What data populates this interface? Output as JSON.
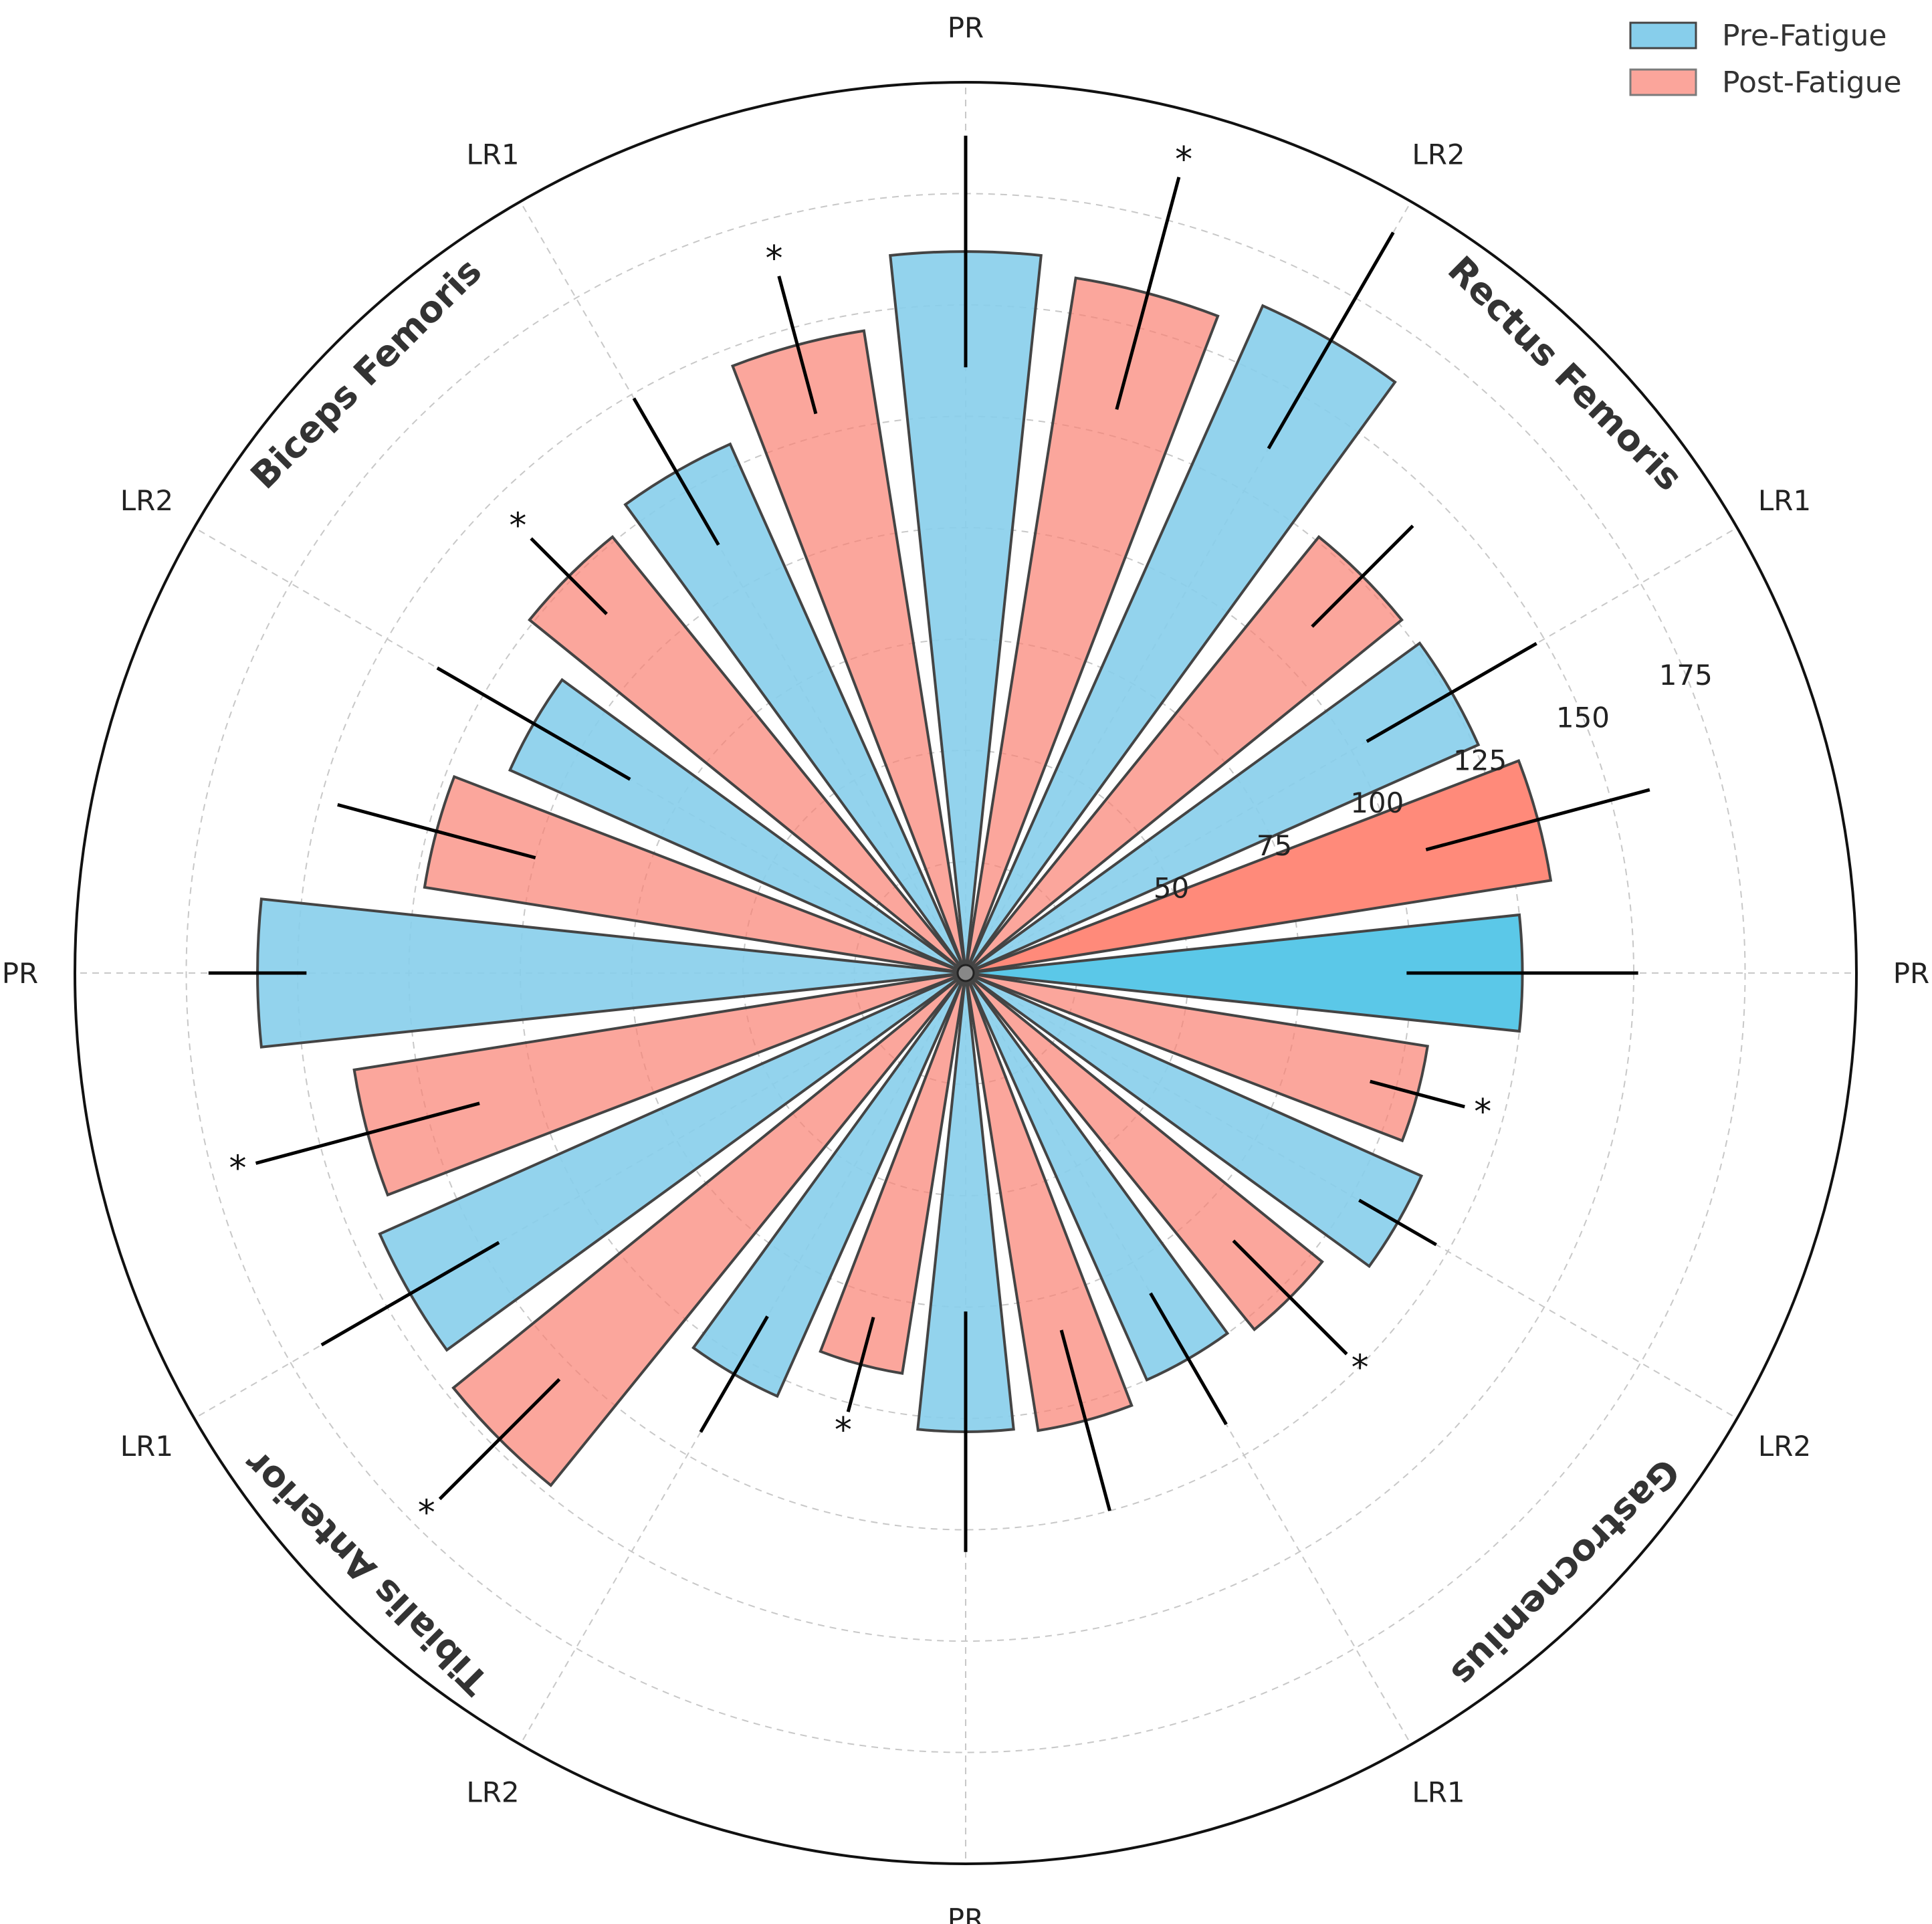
{
  "chart_data": {
    "type": "bar",
    "subtype": "polar-bar",
    "legend": {
      "placement": "top-right",
      "entries": [
        {
          "name": "Pre-Fatigue",
          "color": "#87CEEB"
        },
        {
          "name": "Post-Fatigue",
          "color": "#FA8072"
        }
      ]
    },
    "radial_ticks": [
      "50",
      "75",
      "100",
      "125",
      "150",
      "175"
    ],
    "radial_tick_values": [
      50,
      75,
      100,
      125,
      150,
      175
    ],
    "rlim": [
      0,
      200
    ],
    "grid": true,
    "colors": {
      "pre": "#87CEEB",
      "post": "#FA8072",
      "pre_highlight": "#5BC8E8",
      "post_highlight": "#FF8A7A"
    },
    "categories": [
      {
        "muscle": "Rectus Femoris",
        "phase": "PR",
        "pre": 125,
        "pre_err": 26,
        "post": 133,
        "post_err": 26,
        "post_sig": false
      },
      {
        "muscle": "Rectus Femoris",
        "phase": "LR1",
        "pre": 126,
        "pre_err": 22,
        "post": 126,
        "post_err": 16,
        "post_sig": false
      },
      {
        "muscle": "Rectus Femoris",
        "phase": "LR2",
        "pre": 164,
        "pre_err": 28,
        "post": 158,
        "post_err": 27,
        "post_sig": true
      },
      {
        "muscle": "Biceps Femoris",
        "phase": "PR",
        "pre": 162,
        "pre_err": 26,
        "post": 146,
        "post_err": 16,
        "post_sig": true
      },
      {
        "muscle": "Biceps Femoris",
        "phase": "LR1",
        "pre": 130,
        "pre_err": 19,
        "post": 126,
        "post_err": 12,
        "post_sig": true
      },
      {
        "muscle": "Biceps Femoris",
        "phase": "LR2",
        "pre": 112,
        "pre_err": 25,
        "post": 123,
        "post_err": 23,
        "post_sig": false
      },
      {
        "muscle": "Tibialis Anterior",
        "phase": "PR",
        "pre": 159,
        "pre_err": 11,
        "post": 139,
        "post_err": 26,
        "post_sig": true
      },
      {
        "muscle": "Tibialis Anterior",
        "phase": "LR1",
        "pre": 144,
        "pre_err": 23,
        "post": 148,
        "post_err": 19,
        "post_sig": true
      },
      {
        "muscle": "Tibialis Anterior",
        "phase": "LR2",
        "pre": 104,
        "pre_err": 15,
        "post": 91,
        "post_err": 11,
        "post_sig": true
      },
      {
        "muscle": "Gastrocnemius",
        "phase": "PR",
        "pre": 103,
        "pre_err": 27,
        "post": 104,
        "post_err": 21,
        "post_sig": false
      },
      {
        "muscle": "Gastrocnemius",
        "phase": "LR1",
        "pre": 100,
        "pre_err": 17,
        "post": 103,
        "post_err": 18,
        "post_sig": true
      },
      {
        "muscle": "Gastrocnemius",
        "phase": "LR2",
        "pre": 112,
        "pre_err": 10,
        "post": 105,
        "post_err": 11,
        "post_sig": true
      }
    ],
    "muscle_labels": [
      "Rectus Femoris",
      "Biceps Femoris",
      "Tibialis Anterior",
      "Gastrocnemius"
    ],
    "angular_labels": [
      "PR",
      "LR1",
      "LR2",
      "PR",
      "LR1",
      "LR2",
      "PR",
      "LR1",
      "LR2",
      "PR",
      "LR1",
      "LR2"
    ],
    "significance_marker": "*"
  }
}
